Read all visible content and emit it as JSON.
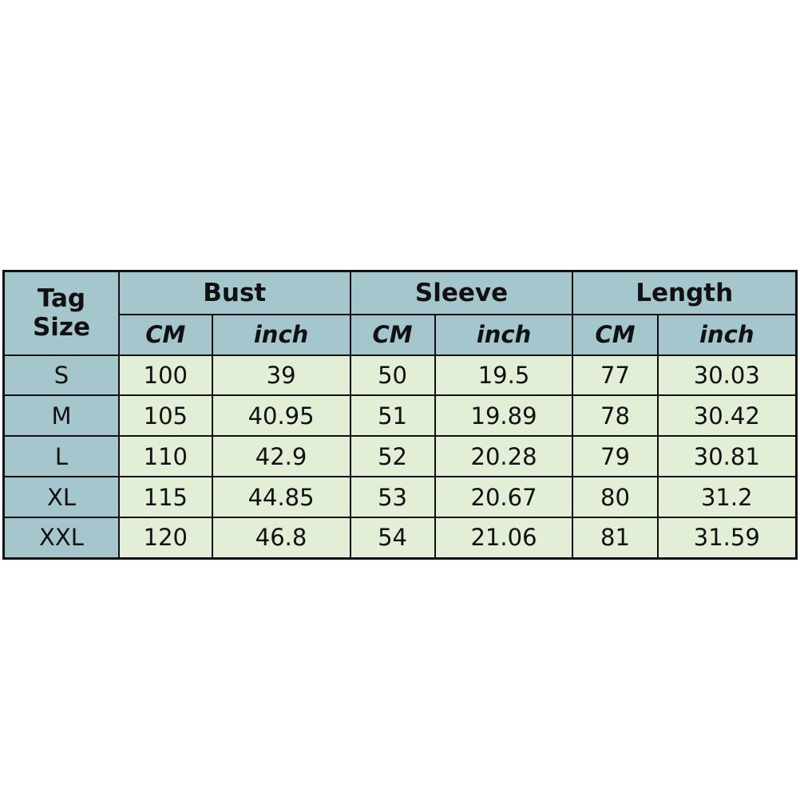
{
  "table": {
    "corner": [
      "Tag",
      "Size"
    ],
    "groups": [
      "Bust",
      "Sleeve",
      "Length"
    ],
    "units": [
      "CM",
      "inch",
      "CM",
      "inch",
      "CM",
      "inch"
    ],
    "rows": [
      {
        "size": "S",
        "values": [
          "100",
          "39",
          "50",
          "19.5",
          "77",
          "30.03"
        ]
      },
      {
        "size": "M",
        "values": [
          "105",
          "40.95",
          "51",
          "19.89",
          "78",
          "30.42"
        ]
      },
      {
        "size": "L",
        "values": [
          "110",
          "42.9",
          "52",
          "20.28",
          "79",
          "30.81"
        ]
      },
      {
        "size": "XL",
        "values": [
          "115",
          "44.85",
          "53",
          "20.67",
          "80",
          "31.2"
        ]
      },
      {
        "size": "XXL",
        "values": [
          "120",
          "46.8",
          "54",
          "21.06",
          "81",
          "31.59"
        ]
      }
    ]
  },
  "colors": {
    "header": "#a6c6cd",
    "cell": "#e3eed6",
    "border": "#111111"
  }
}
